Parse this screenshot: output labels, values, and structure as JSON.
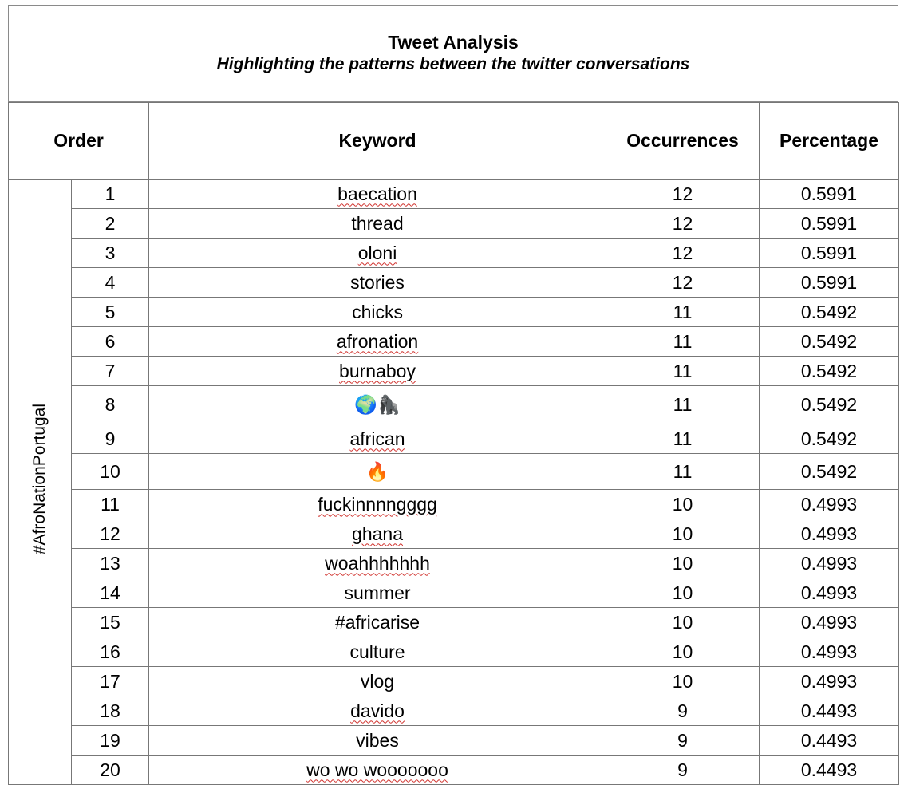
{
  "header": {
    "title": "Tweet Analysis",
    "subtitle": "Highlighting the patterns between the twitter conversations"
  },
  "table": {
    "columns": [
      "Order",
      "Keyword",
      "Occurrences",
      "Percentage"
    ],
    "group": "#AfroNationPortugal",
    "rows": [
      [
        1,
        "baecation",
        12,
        0.5991
      ],
      [
        2,
        "thread",
        12,
        0.5991
      ],
      [
        3,
        "oloni",
        12,
        0.5991
      ],
      [
        4,
        "stories",
        12,
        0.5991
      ],
      [
        5,
        "chicks",
        11,
        0.5492
      ],
      [
        6,
        "afronation",
        11,
        0.5492
      ],
      [
        7,
        "burnaboy",
        11,
        0.5492
      ],
      [
        8,
        "🌍🦍",
        11,
        0.5492
      ],
      [
        9,
        "african",
        11,
        0.5492
      ],
      [
        10,
        "🔥",
        11,
        0.5492
      ],
      [
        11,
        "fuckinnnngggg",
        10,
        0.4993
      ],
      [
        12,
        "ghana",
        10,
        0.4993
      ],
      [
        13,
        "woahhhhhhh",
        10,
        0.4993
      ],
      [
        14,
        "summer",
        10,
        0.4993
      ],
      [
        15,
        "#africarise",
        10,
        0.4993
      ],
      [
        16,
        "culture",
        10,
        0.4993
      ],
      [
        17,
        "vlog",
        10,
        0.4993
      ],
      [
        18,
        "davido",
        9,
        0.4493
      ],
      [
        19,
        "vibes",
        9,
        0.4493
      ],
      [
        20,
        "wo wo wooooooo",
        9,
        0.4493
      ]
    ]
  }
}
